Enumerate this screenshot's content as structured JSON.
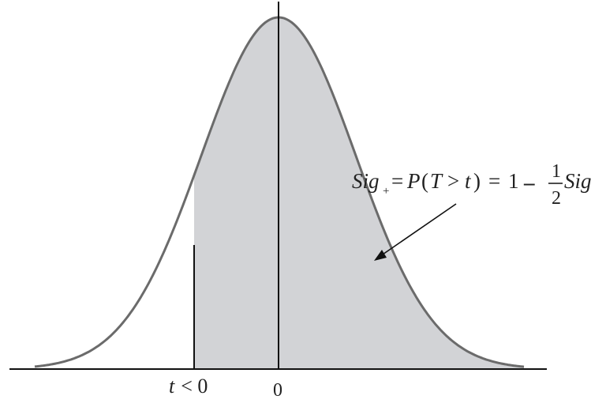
{
  "labels": {
    "t_var": "t",
    "t_relation": "< 0",
    "zero": "0"
  },
  "annotation": {
    "sig": "Sig",
    "subscript": "+",
    "eq1": "=",
    "p": "P",
    "paren_open": "(",
    "big_t": "T",
    "gt": ">",
    "small_t": "t",
    "paren_close": ")",
    "eq2": "=",
    "one": "1",
    "minus": "–",
    "frac_num": "1",
    "frac_den": "2",
    "sig2": "Sig"
  },
  "colors": {
    "curve": "#6b6b6b",
    "fill": "#d2d3d6",
    "axis": "#111111"
  }
}
